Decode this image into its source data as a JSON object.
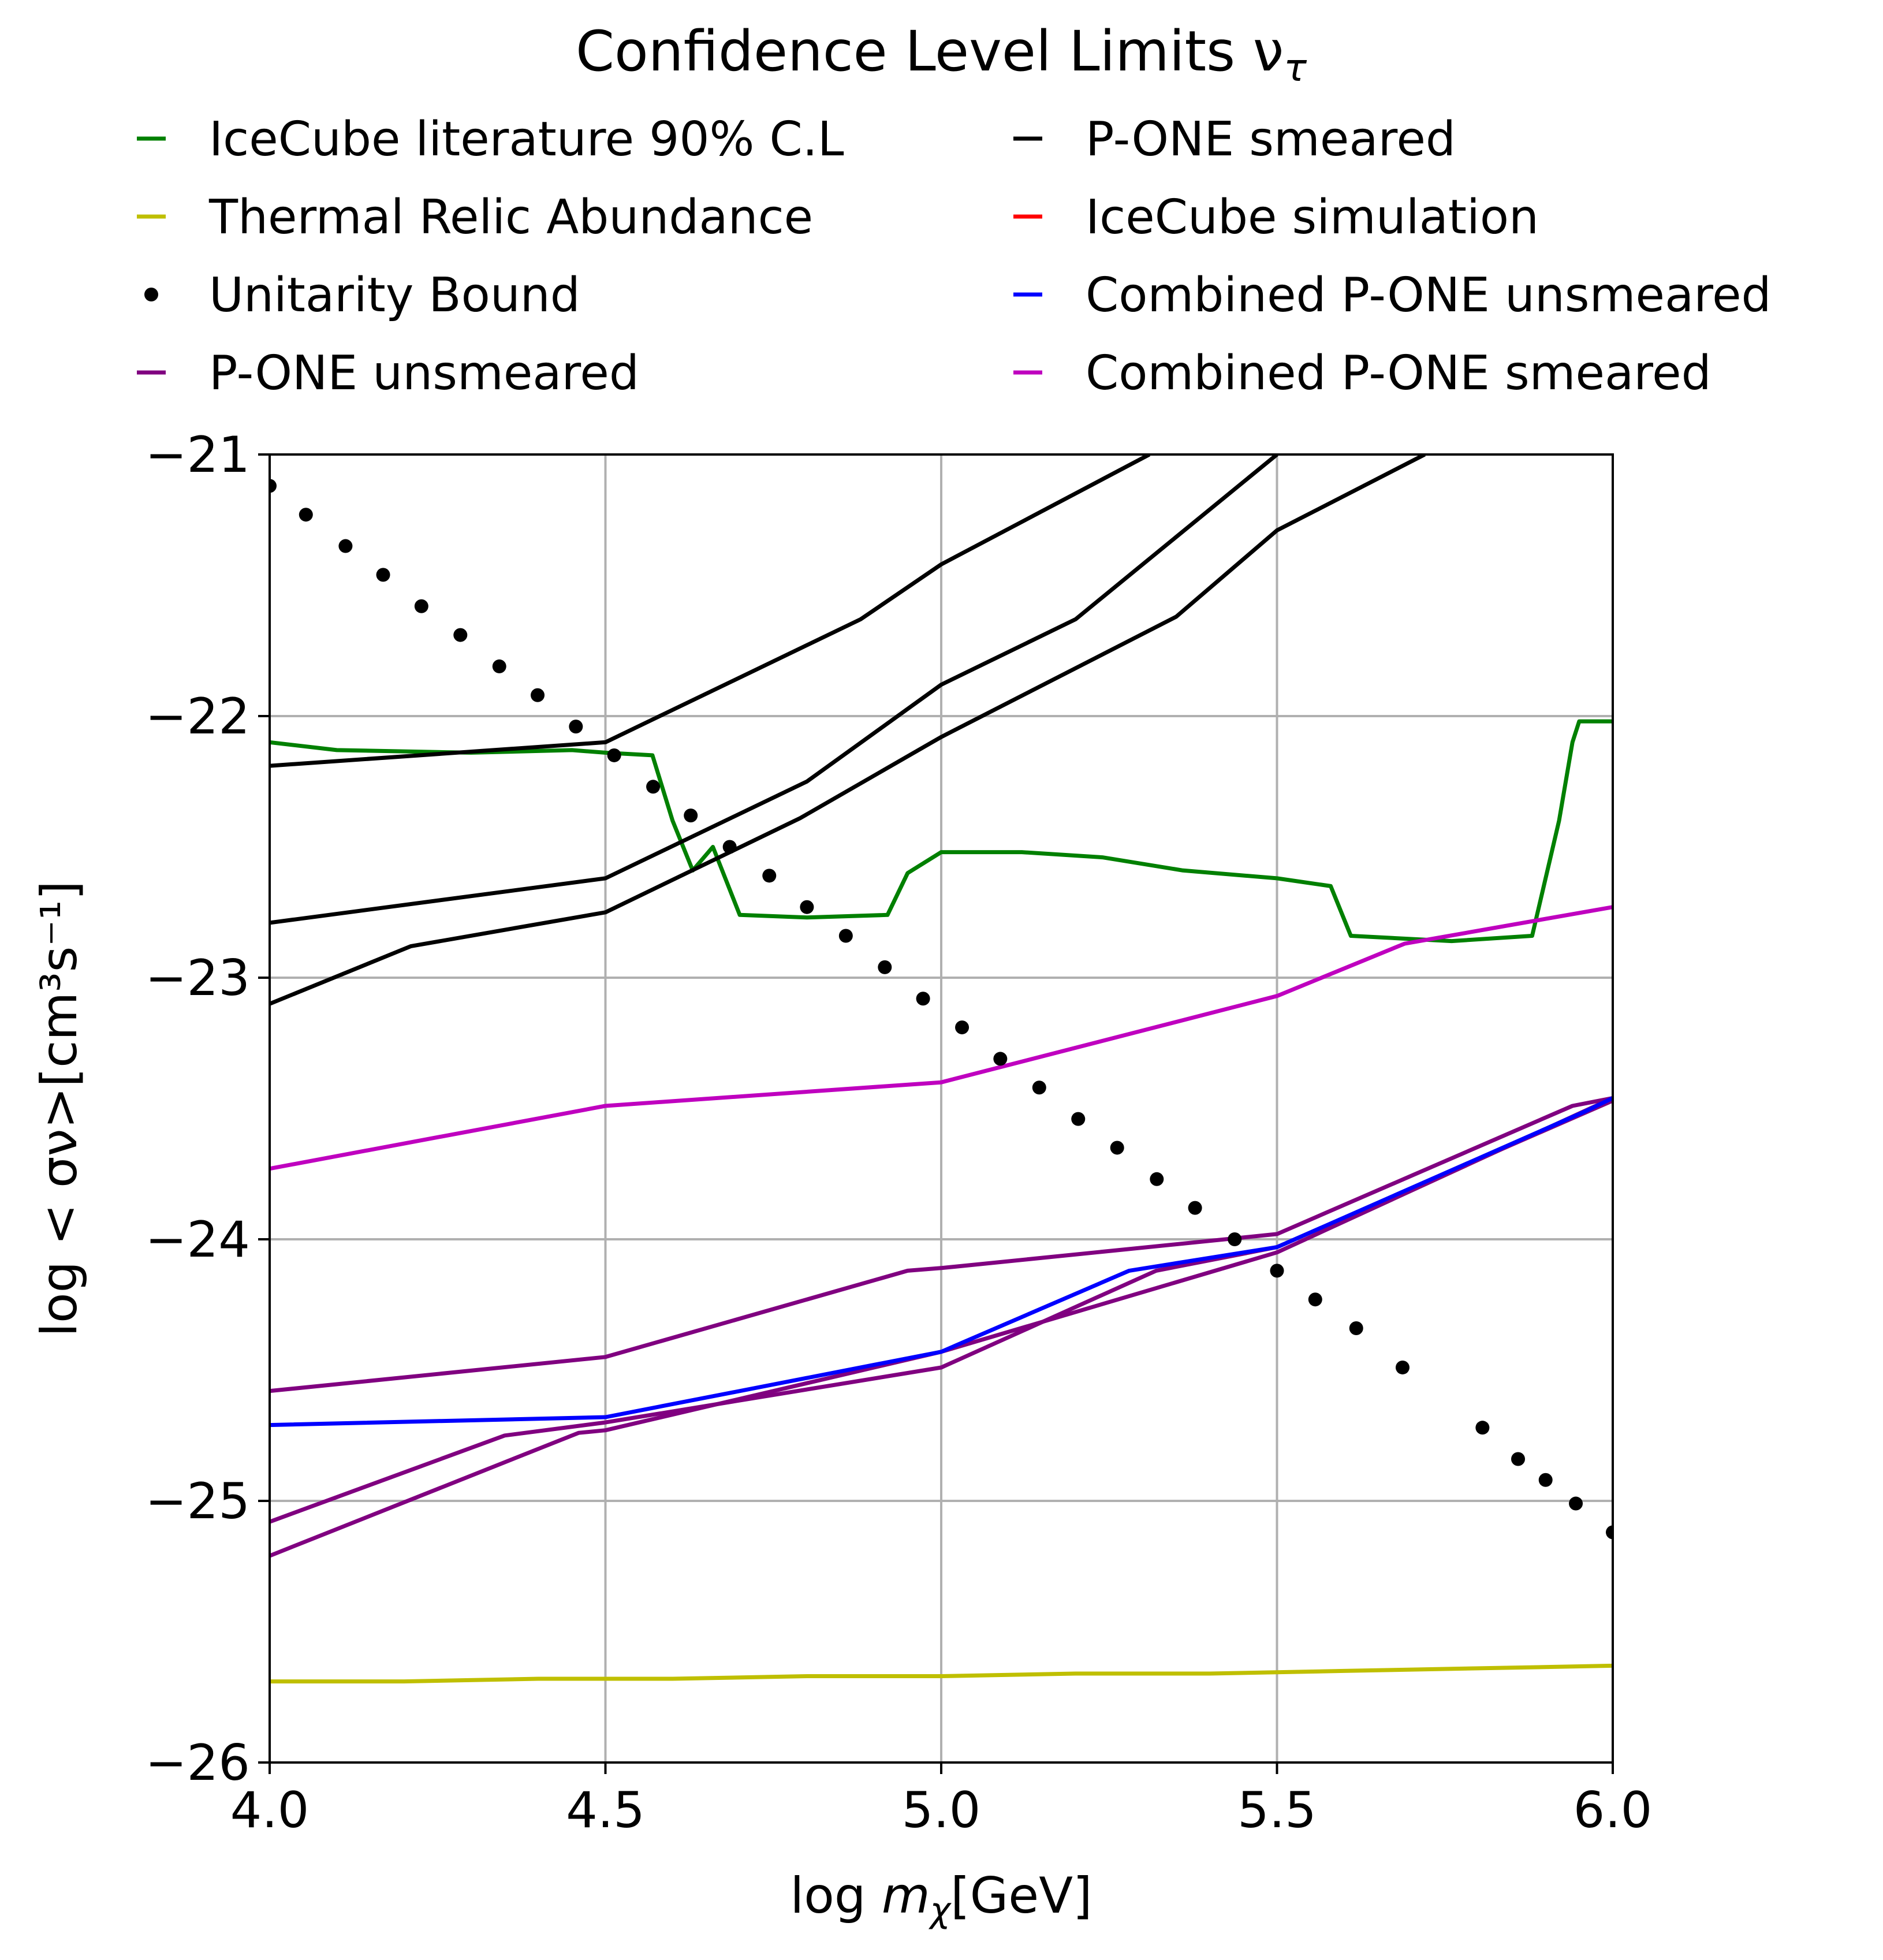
{
  "chart_data": {
    "type": "line",
    "title": "Confidence Level Limits ν",
    "title_subscript": "τ",
    "xlabel": "log ",
    "xlabel_math": "m",
    "xlabel_subscript": "χ",
    "xlabel_unit": "[GeV]",
    "ylabel": "log < σν>[cm³s⁻¹]",
    "xlim": [
      4.0,
      6.0
    ],
    "ylim": [
      -26,
      -21
    ],
    "xticks": [
      4.0,
      4.5,
      5.0,
      5.5,
      6.0
    ],
    "xtick_labels": [
      "4.0",
      "4.5",
      "5.0",
      "5.5",
      "6.0"
    ],
    "yticks": [
      -26,
      -25,
      -24,
      -23,
      -22,
      -21
    ],
    "ytick_labels": [
      "−26",
      "−25",
      "−24",
      "−23",
      "−22",
      "−21"
    ],
    "grid": true,
    "legend_placement": "top, above plot, two columns",
    "legend": [
      {
        "label": "IceCube literature 90% C.L",
        "color": "#008000",
        "marker": "dash"
      },
      {
        "label": "Thermal Relic Abundance",
        "color": "#bfbf00",
        "marker": "dash"
      },
      {
        "label": "Unitarity Bound",
        "color": "#000000",
        "marker": "dot"
      },
      {
        "label": "P-ONE unsmeared",
        "color": "#800080",
        "marker": "dash"
      },
      {
        "label": "P-ONE smeared",
        "color": "#000000",
        "marker": "dash"
      },
      {
        "label": "IceCube simulation",
        "color": "#ff0000",
        "marker": "dash"
      },
      {
        "label": "Combined P-ONE unsmeared",
        "color": "#0000ff",
        "marker": "dash"
      },
      {
        "label": "Combined P-ONE smeared",
        "color": "#bf00bf",
        "marker": "dash"
      }
    ],
    "series": [
      {
        "name": "IceCube literature 90% C.L",
        "color": "#008000",
        "style": "line",
        "x": [
          4.0,
          4.1,
          4.3,
          4.45,
          4.5,
          4.57,
          4.6,
          4.63,
          4.66,
          4.7,
          4.8,
          4.92,
          4.95,
          5.0,
          5.12,
          5.24,
          5.36,
          5.5,
          5.58,
          5.61,
          5.76,
          5.88,
          5.92,
          5.94,
          5.95,
          6.0
        ],
        "y": [
          -22.1,
          -22.13,
          -22.14,
          -22.13,
          -22.14,
          -22.15,
          -22.4,
          -22.59,
          -22.5,
          -22.76,
          -22.77,
          -22.76,
          -22.6,
          -22.52,
          -22.52,
          -22.54,
          -22.59,
          -22.62,
          -22.65,
          -22.84,
          -22.86,
          -22.84,
          -22.4,
          -22.1,
          -22.02,
          -22.02
        ]
      },
      {
        "name": "Thermal Relic Abundance",
        "color": "#bfbf00",
        "style": "line",
        "x": [
          4.0,
          4.2,
          4.4,
          4.6,
          4.8,
          5.0,
          5.2,
          5.4,
          5.6,
          5.8,
          6.0
        ],
        "y": [
          -25.69,
          -25.69,
          -25.68,
          -25.68,
          -25.67,
          -25.67,
          -25.66,
          -25.66,
          -25.65,
          -25.64,
          -25.63
        ]
      },
      {
        "name": "Unitarity Bound",
        "color": "#000000",
        "style": "dots",
        "x": [
          4.0,
          4.054,
          4.113,
          4.169,
          4.226,
          4.284,
          4.342,
          4.399,
          4.456,
          4.513,
          4.571,
          4.627,
          4.685,
          4.744,
          4.8,
          4.858,
          4.916,
          4.973,
          5.031,
          5.088,
          5.146,
          5.204,
          5.262,
          5.321,
          5.378,
          5.437,
          5.5,
          5.557,
          5.618,
          5.687,
          5.806,
          5.859,
          5.9,
          5.945,
          6.0
        ],
        "y": [
          -21.12,
          -21.23,
          -21.35,
          -21.46,
          -21.58,
          -21.69,
          -21.81,
          -21.92,
          -22.04,
          -22.15,
          -22.27,
          -22.38,
          -22.5,
          -22.61,
          -22.73,
          -22.84,
          -22.96,
          -23.08,
          -23.19,
          -23.31,
          -23.42,
          -23.54,
          -23.65,
          -23.77,
          -23.88,
          -24.0,
          -24.12,
          -24.23,
          -24.34,
          -24.49,
          -24.72,
          -24.84,
          -24.92,
          -25.01,
          -25.12
        ]
      },
      {
        "name": "P-ONE smeared (1)",
        "color": "#000000",
        "style": "line",
        "x": [
          4.0,
          4.5,
          4.88,
          5.0,
          5.31
        ],
        "y": [
          -22.19,
          -22.1,
          -21.63,
          -21.42,
          -21.0
        ]
      },
      {
        "name": "P-ONE smeared (2)",
        "color": "#000000",
        "style": "line",
        "x": [
          4.0,
          4.5,
          4.8,
          5.0,
          5.2,
          5.5
        ],
        "y": [
          -22.79,
          -22.62,
          -22.25,
          -21.88,
          -21.63,
          -21.0
        ]
      },
      {
        "name": "P-ONE smeared (3)",
        "color": "#000000",
        "style": "line",
        "x": [
          4.0,
          4.21,
          4.5,
          4.79,
          5.0,
          5.35,
          5.5,
          5.72
        ],
        "y": [
          -23.1,
          -22.88,
          -22.75,
          -22.39,
          -22.08,
          -21.62,
          -21.29,
          -21.0
        ]
      },
      {
        "name": "Combined P-ONE smeared",
        "color": "#bf00bf",
        "style": "line",
        "x": [
          4.0,
          4.5,
          5.0,
          5.5,
          5.69,
          6.0
        ],
        "y": [
          -23.73,
          -23.49,
          -23.4,
          -23.07,
          -22.87,
          -22.73
        ]
      },
      {
        "name": "P-ONE unsmeared (1)",
        "color": "#800080",
        "style": "line",
        "x": [
          4.0,
          4.5,
          4.95,
          5.0,
          5.5,
          5.94,
          6.0
        ],
        "y": [
          -24.58,
          -24.45,
          -24.12,
          -24.11,
          -23.98,
          -23.49,
          -23.46
        ]
      },
      {
        "name": "P-ONE unsmeared (2)",
        "color": "#800080",
        "style": "line",
        "x": [
          4.0,
          4.35,
          4.5,
          5.0,
          5.32,
          5.5,
          6.0
        ],
        "y": [
          -25.08,
          -24.75,
          -24.7,
          -24.49,
          -24.12,
          -24.03,
          -23.47
        ]
      },
      {
        "name": "P-ONE unsmeared (3)",
        "color": "#800080",
        "style": "line",
        "x": [
          4.0,
          4.46,
          4.5,
          5.0,
          5.5,
          6.0
        ],
        "y": [
          -25.21,
          -24.74,
          -24.73,
          -24.43,
          -24.05,
          -23.46
        ]
      },
      {
        "name": "Combined P-ONE unsmeared",
        "color": "#0000ff",
        "style": "line",
        "x": [
          4.0,
          4.5,
          5.0,
          5.28,
          5.5,
          5.96,
          6.0
        ],
        "y": [
          -24.71,
          -24.68,
          -24.43,
          -24.12,
          -24.03,
          -23.51,
          -23.46
        ]
      }
    ]
  }
}
